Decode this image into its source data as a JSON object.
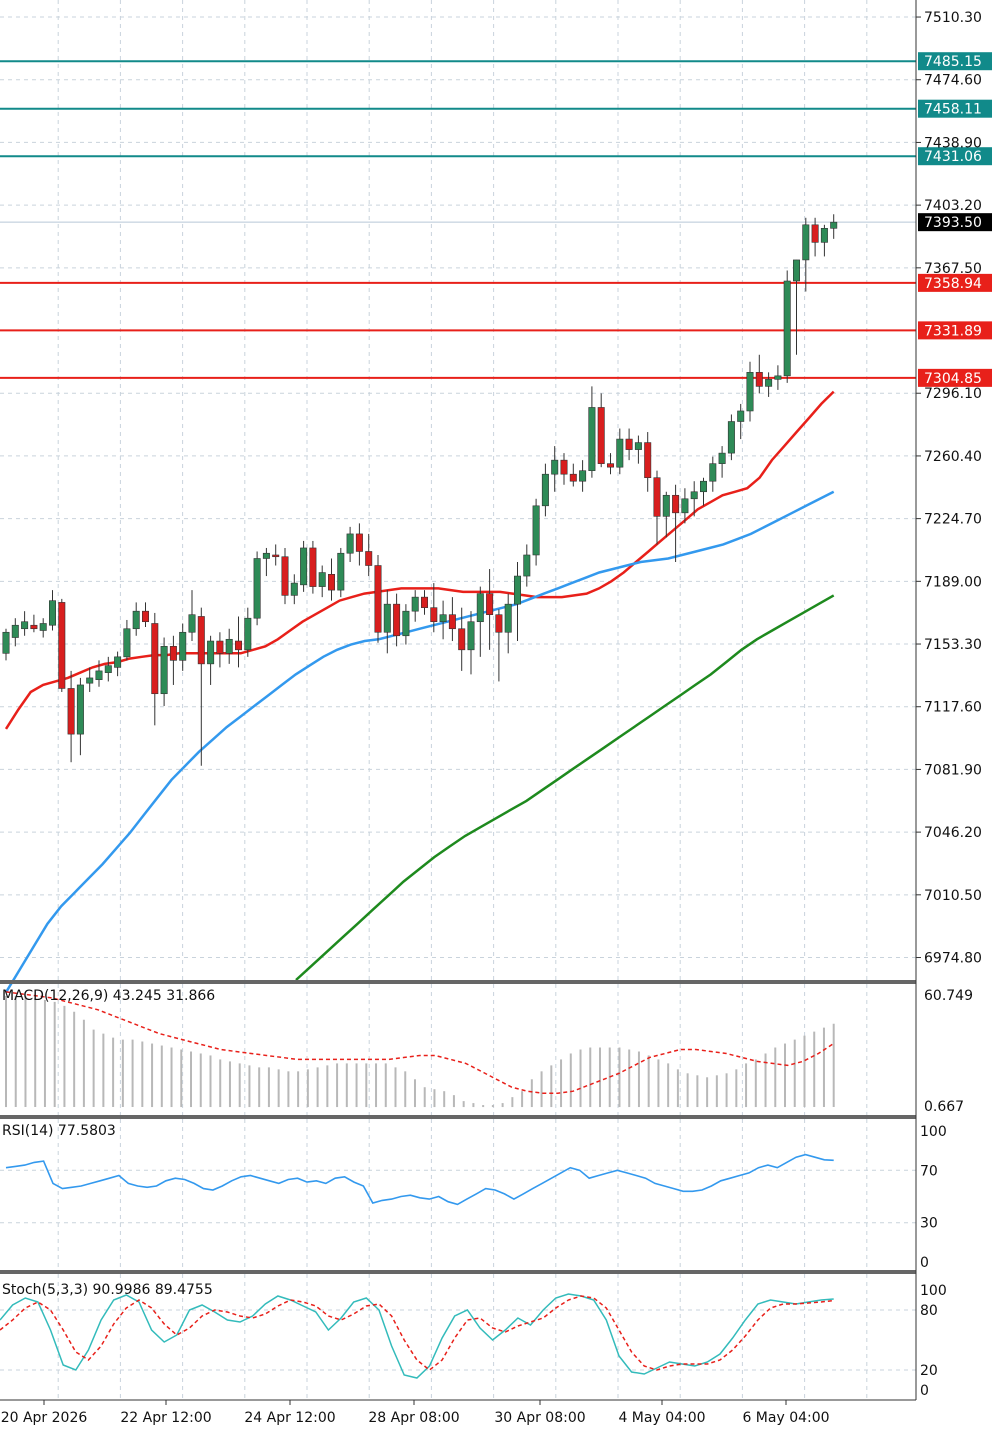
{
  "colors": {
    "background": "#ffffff",
    "grid": "#c9d3dc",
    "axis": "#333333",
    "bull_body": "#2e8b57",
    "bear_body": "#d81e1e",
    "wick": "#333333",
    "ma_fast": "#e8201a",
    "ma_mid": "#3399ee",
    "ma_slow": "#1e8a1e",
    "resistance": "#118a8a",
    "support": "#e8201a",
    "current_price": "#000000",
    "macd_hist": "#b8b8b8",
    "macd_signal": "#e8201a",
    "rsi": "#3399ee",
    "stoch_main": "#33bbbb",
    "stoch_signal": "#e8201a"
  },
  "chart_data": [
    {
      "type": "candlestick",
      "panel": "price",
      "ylim": [
        6962,
        7520
      ],
      "y_ticks": [
        "7510.30",
        "7474.60",
        "7438.90",
        "7403.20",
        "7367.50",
        "7296.10",
        "7260.40",
        "7224.70",
        "7189.00",
        "7153.30",
        "7117.60",
        "7081.90",
        "7046.20",
        "7010.50",
        "6974.80"
      ],
      "x_ticks": [
        "20 Apr 2026",
        "22 Apr 12:00",
        "24 Apr 12:00",
        "28 Apr 08:00",
        "30 Apr 08:00",
        "4 May 04:00",
        "6 May 04:00"
      ],
      "current_price": "7393.50",
      "levels": [
        {
          "label": "7485.15",
          "kind": "resistance"
        },
        {
          "label": "7458.11",
          "kind": "resistance"
        },
        {
          "label": "7431.06",
          "kind": "resistance"
        },
        {
          "label": "7358.94",
          "kind": "support"
        },
        {
          "label": "7331.89",
          "kind": "support"
        },
        {
          "label": "7304.85",
          "kind": "support"
        }
      ],
      "candles": [
        [
          7148,
          7162,
          7144,
          7160
        ],
        [
          7157,
          7168,
          7152,
          7164
        ],
        [
          7162,
          7172,
          7158,
          7166
        ],
        [
          7164,
          7170,
          7160,
          7162
        ],
        [
          7161,
          7168,
          7157,
          7165
        ],
        [
          7164,
          7184,
          7161,
          7178
        ],
        [
          7177,
          7179,
          7126,
          7128
        ],
        [
          7128,
          7138,
          7086,
          7102
        ],
        [
          7102,
          7134,
          7090,
          7130
        ],
        [
          7131,
          7140,
          7126,
          7134
        ],
        [
          7133,
          7144,
          7129,
          7138
        ],
        [
          7137,
          7146,
          7132,
          7141
        ],
        [
          7140,
          7149,
          7135,
          7146
        ],
        [
          7146,
          7167,
          7144,
          7162
        ],
        [
          7162,
          7177,
          7158,
          7172
        ],
        [
          7172,
          7177,
          7163,
          7166
        ],
        [
          7165,
          7171,
          7107,
          7125
        ],
        [
          7125,
          7157,
          7118,
          7152
        ],
        [
          7152,
          7158,
          7130,
          7144
        ],
        [
          7144,
          7165,
          7138,
          7160
        ],
        [
          7160,
          7184,
          7155,
          7170
        ],
        [
          7169,
          7174,
          7084,
          7142
        ],
        [
          7142,
          7158,
          7130,
          7155
        ],
        [
          7155,
          7160,
          7140,
          7148
        ],
        [
          7148,
          7162,
          7142,
          7156
        ],
        [
          7155,
          7169,
          7140,
          7150
        ],
        [
          7150,
          7174,
          7146,
          7168
        ],
        [
          7168,
          7206,
          7164,
          7202
        ],
        [
          7202,
          7208,
          7192,
          7205
        ],
        [
          7204,
          7210,
          7198,
          7203
        ],
        [
          7203,
          7208,
          7176,
          7181
        ],
        [
          7181,
          7193,
          7176,
          7188
        ],
        [
          7187,
          7212,
          7183,
          7208
        ],
        [
          7208,
          7212,
          7182,
          7186
        ],
        [
          7186,
          7198,
          7180,
          7194
        ],
        [
          7193,
          7202,
          7178,
          7184
        ],
        [
          7184,
          7208,
          7180,
          7205
        ],
        [
          7205,
          7220,
          7200,
          7216
        ],
        [
          7216,
          7222,
          7198,
          7206
        ],
        [
          7206,
          7216,
          7192,
          7198
        ],
        [
          7198,
          7204,
          7154,
          7160
        ],
        [
          7160,
          7184,
          7148,
          7176
        ],
        [
          7176,
          7182,
          7152,
          7158
        ],
        [
          7158,
          7176,
          7153,
          7172
        ],
        [
          7172,
          7184,
          7166,
          7180
        ],
        [
          7180,
          7184,
          7170,
          7174
        ],
        [
          7174,
          7188,
          7160,
          7166
        ],
        [
          7166,
          7178,
          7156,
          7170
        ],
        [
          7170,
          7180,
          7155,
          7162
        ],
        [
          7162,
          7174,
          7138,
          7150
        ],
        [
          7150,
          7172,
          7136,
          7166
        ],
        [
          7166,
          7186,
          7146,
          7182
        ],
        [
          7182,
          7196,
          7150,
          7170
        ],
        [
          7170,
          7173,
          7132,
          7160
        ],
        [
          7160,
          7182,
          7148,
          7176
        ],
        [
          7176,
          7200,
          7155,
          7192
        ],
        [
          7192,
          7210,
          7186,
          7204
        ],
        [
          7204,
          7236,
          7198,
          7232
        ],
        [
          7232,
          7256,
          7226,
          7250
        ],
        [
          7250,
          7266,
          7240,
          7258
        ],
        [
          7258,
          7262,
          7244,
          7250
        ],
        [
          7250,
          7256,
          7243,
          7246
        ],
        [
          7246,
          7258,
          7240,
          7252
        ],
        [
          7252,
          7300,
          7248,
          7288
        ],
        [
          7288,
          7296,
          7254,
          7256
        ],
        [
          7256,
          7262,
          7250,
          7254
        ],
        [
          7254,
          7276,
          7250,
          7270
        ],
        [
          7270,
          7276,
          7258,
          7264
        ],
        [
          7264,
          7272,
          7256,
          7268
        ],
        [
          7268,
          7274,
          7240,
          7248
        ],
        [
          7248,
          7252,
          7210,
          7226
        ],
        [
          7226,
          7240,
          7214,
          7238
        ],
        [
          7238,
          7244,
          7200,
          7228
        ],
        [
          7228,
          7242,
          7222,
          7236
        ],
        [
          7236,
          7246,
          7226,
          7240
        ],
        [
          7240,
          7248,
          7232,
          7246
        ],
        [
          7246,
          7260,
          7240,
          7256
        ],
        [
          7256,
          7266,
          7248,
          7262
        ],
        [
          7262,
          7284,
          7258,
          7280
        ],
        [
          7280,
          7290,
          7270,
          7286
        ],
        [
          7286,
          7314,
          7280,
          7308
        ],
        [
          7308,
          7318,
          7296,
          7300
        ],
        [
          7300,
          7308,
          7294,
          7304
        ],
        [
          7304,
          7312,
          7298,
          7306
        ],
        [
          7306,
          7366,
          7302,
          7360
        ],
        [
          7360,
          7372,
          7318,
          7372
        ],
        [
          7372,
          7396,
          7354,
          7392
        ],
        [
          7392,
          7396,
          7374,
          7382
        ],
        [
          7382,
          7392,
          7374,
          7390
        ],
        [
          7390,
          7398,
          7384,
          7393.5
        ]
      ],
      "series": [
        {
          "values": [
            7105,
            7116,
            7126,
            7130,
            7132,
            7134,
            7137,
            7140,
            7142,
            7143,
            7145,
            7146,
            7147,
            7147,
            7148,
            7148,
            7148,
            7148,
            7148,
            7148,
            7150,
            7152,
            7156,
            7161,
            7166,
            7170,
            7174,
            7178,
            7180,
            7182,
            7183,
            7184,
            7185,
            7185,
            7185,
            7185,
            7184,
            7183,
            7183,
            7183,
            7183,
            7182,
            7181,
            7180,
            7180,
            7180,
            7181,
            7182,
            7185,
            7189,
            7194,
            7200,
            7206,
            7212,
            7218,
            7224,
            7230,
            7234,
            7238,
            7240,
            7242,
            7248,
            7258,
            7266,
            7274,
            7282,
            7290,
            7297
          ]
        },
        {
          "values": [
            6955,
            6968,
            6981,
            6994,
            7004,
            7012,
            7020,
            7028,
            7037,
            7046,
            7056,
            7066,
            7076,
            7084,
            7092,
            7099,
            7106,
            7112,
            7118,
            7124,
            7130,
            7136,
            7141,
            7146,
            7150,
            7153,
            7155,
            7156,
            7158,
            7160,
            7162,
            7164,
            7166,
            7168,
            7170,
            7172,
            7174,
            7176,
            7179,
            7182,
            7185,
            7188,
            7191,
            7194,
            7196,
            7198,
            7200,
            7201,
            7202,
            7204,
            7206,
            7208,
            7210,
            7213,
            7216,
            7220,
            7224,
            7228,
            7232,
            7236,
            7240
          ]
        },
        {
          "values": [
            6962,
            6970,
            6978,
            6986,
            6994,
            7002,
            7010,
            7018,
            7025,
            7032,
            7038,
            7044,
            7049,
            7054,
            7059,
            7064,
            7070,
            7076,
            7082,
            7088,
            7094,
            7100,
            7106,
            7112,
            7118,
            7124,
            7130,
            7136,
            7143,
            7150,
            7156,
            7161,
            7166,
            7171,
            7176,
            7181
          ]
        }
      ]
    },
    {
      "type": "bar",
      "panel": "macd",
      "title": "MACD(12,26,9) 43.245 31.866",
      "ylim": [
        -4,
        62
      ],
      "y_ticks": [
        "60.749",
        "0.667"
      ],
      "values": [
        56,
        56,
        56,
        55,
        54,
        53,
        51,
        48,
        44,
        39,
        37,
        35,
        34,
        34,
        33,
        32,
        31,
        30,
        29,
        28,
        27,
        26,
        24,
        23,
        22,
        21,
        20,
        20,
        19,
        18,
        18,
        19,
        20,
        21,
        22,
        22,
        22,
        22,
        22,
        22,
        20,
        18,
        14,
        10,
        9,
        8,
        6,
        3,
        2,
        1,
        1,
        2,
        5,
        8,
        14,
        18,
        21,
        24,
        27,
        29,
        30,
        30,
        30,
        30,
        29,
        28,
        26,
        24,
        22,
        19,
        17,
        16,
        15,
        16,
        17,
        19,
        22,
        24,
        27,
        30,
        32,
        34,
        36,
        38,
        40,
        42
      ],
      "series": [
        {
          "values": [
            58,
            57,
            56,
            55,
            53,
            51,
            49,
            46,
            43,
            40,
            37,
            35,
            33,
            31,
            29,
            28,
            27,
            26,
            25,
            24,
            24,
            24,
            24,
            24,
            24,
            24,
            25,
            26,
            26,
            24,
            22,
            18,
            14,
            10,
            8,
            7,
            7,
            8,
            11,
            14,
            17,
            21,
            25,
            27,
            29,
            29,
            28,
            27,
            25,
            23,
            22,
            21,
            23,
            27,
            32
          ]
        }
      ]
    },
    {
      "type": "line",
      "panel": "rsi",
      "title": "RSI(14) 77.5803",
      "ylim": [
        0,
        100
      ],
      "y_ticks": [
        "100",
        "70",
        "30",
        "0"
      ],
      "series": [
        {
          "values": [
            72,
            73,
            74,
            76,
            77,
            60,
            56,
            57,
            58,
            60,
            62,
            64,
            66,
            60,
            58,
            57,
            58,
            62,
            64,
            63,
            60,
            56,
            55,
            58,
            62,
            65,
            66,
            64,
            62,
            60,
            63,
            64,
            61,
            62,
            60,
            64,
            65,
            61,
            58,
            45,
            47,
            48,
            50,
            51,
            49,
            48,
            50,
            46,
            44,
            48,
            52,
            56,
            55,
            52,
            48,
            52,
            56,
            60,
            64,
            68,
            72,
            70,
            64,
            66,
            68,
            70,
            68,
            66,
            64,
            60,
            58,
            56,
            54,
            54,
            55,
            58,
            62,
            64,
            66,
            68,
            72,
            74,
            72,
            76,
            80,
            82,
            80,
            78,
            77.6
          ]
        }
      ]
    },
    {
      "type": "line",
      "panel": "stoch",
      "title": "Stoch(5,3,3) 90.9986 89.4755",
      "ylim": [
        0,
        100
      ],
      "y_ticks": [
        "100",
        "80",
        "20",
        "0"
      ],
      "series": [
        {
          "values": [
            70,
            85,
            92,
            88,
            60,
            25,
            20,
            40,
            70,
            90,
            95,
            88,
            60,
            48,
            55,
            80,
            85,
            78,
            70,
            68,
            74,
            86,
            94,
            90,
            84,
            78,
            60,
            72,
            88,
            92,
            80,
            44,
            15,
            12,
            24,
            52,
            74,
            80,
            62,
            50,
            60,
            72,
            65,
            80,
            92,
            96,
            94,
            90,
            70,
            34,
            18,
            16,
            22,
            28,
            26,
            24,
            28,
            36,
            52,
            70,
            86,
            90,
            88,
            86,
            88,
            90,
            91
          ]
        },
        {
          "values": [
            60,
            70,
            82,
            88,
            80,
            60,
            38,
            30,
            44,
            66,
            82,
            90,
            82,
            66,
            55,
            62,
            74,
            80,
            78,
            74,
            72,
            76,
            84,
            90,
            88,
            84,
            74,
            70,
            76,
            84,
            86,
            74,
            50,
            30,
            20,
            30,
            52,
            70,
            72,
            62,
            58,
            64,
            68,
            72,
            82,
            90,
            94,
            92,
            82,
            60,
            38,
            24,
            20,
            24,
            26,
            26,
            26,
            30,
            40,
            54,
            70,
            82,
            86,
            86,
            87,
            88,
            89.5
          ]
        }
      ]
    }
  ]
}
